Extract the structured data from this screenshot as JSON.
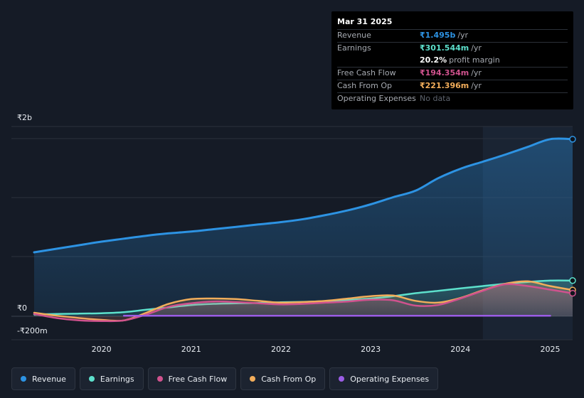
{
  "tooltip": {
    "date": "Mar 31 2025",
    "rows": [
      {
        "label": "Revenue",
        "value": "₹1.495b",
        "unit": "/yr",
        "color": "#2d93e3"
      },
      {
        "label": "Earnings",
        "value": "₹301.544m",
        "unit": "/yr",
        "color": "#5de0cc"
      },
      {
        "label": "",
        "value": "20.2%",
        "unit": "profit margin",
        "color": "#ffffff"
      },
      {
        "label": "Free Cash Flow",
        "value": "₹194.354m",
        "unit": "/yr",
        "color": "#d0528e"
      },
      {
        "label": "Cash From Op",
        "value": "₹221.396m",
        "unit": "/yr",
        "color": "#f2ad5b"
      },
      {
        "label": "Operating Expenses",
        "value": "No data",
        "unit": "",
        "color": "#5d636d"
      }
    ]
  },
  "axis": {
    "y_top_label": "₹2b",
    "y_zero_label": "₹0",
    "y_bottom_label": "-₹200m"
  },
  "legend": [
    {
      "label": "Revenue",
      "color": "#2d93e3"
    },
    {
      "label": "Earnings",
      "color": "#5de0cc"
    },
    {
      "label": "Free Cash Flow",
      "color": "#d0528e"
    },
    {
      "label": "Cash From Op",
      "color": "#f2ad5b"
    },
    {
      "label": "Operating Expenses",
      "color": "#9b5de5"
    }
  ],
  "chart_data": {
    "type": "area",
    "title": "",
    "xlabel": "",
    "ylabel": "",
    "units": "INR millions",
    "xlim": [
      2019.25,
      2025.25
    ],
    "ylim": [
      -200,
      2000
    ],
    "x_ticks": [
      2020,
      2021,
      2022,
      2023,
      2024,
      2025
    ],
    "x_tick_labels": [
      "2020",
      "2021",
      "2022",
      "2023",
      "2024",
      "2025"
    ],
    "forecast_start": 2024.25,
    "series": [
      {
        "name": "Revenue",
        "color": "#2d93e3",
        "fill": true,
        "x": [
          2019.25,
          2019.5,
          2019.75,
          2020.0,
          2020.25,
          2020.5,
          2020.75,
          2021.0,
          2021.25,
          2021.5,
          2021.75,
          2022.0,
          2022.25,
          2022.5,
          2022.75,
          2023.0,
          2023.25,
          2023.5,
          2023.75,
          2024.0,
          2024.25,
          2024.5,
          2024.75,
          2025.0,
          2025.25
        ],
        "values": [
          540,
          570,
          600,
          630,
          655,
          680,
          700,
          715,
          735,
          755,
          775,
          795,
          820,
          855,
          895,
          945,
          1005,
          1060,
          1165,
          1245,
          1305,
          1365,
          1430,
          1495,
          1495
        ]
      },
      {
        "name": "Earnings",
        "color": "#5de0cc",
        "fill": true,
        "x": [
          2019.25,
          2019.5,
          2019.75,
          2020.0,
          2020.25,
          2020.5,
          2020.75,
          2021.0,
          2021.25,
          2021.5,
          2021.75,
          2022.0,
          2022.25,
          2022.5,
          2022.75,
          2023.0,
          2023.25,
          2023.5,
          2023.75,
          2024.0,
          2024.25,
          2024.5,
          2024.75,
          2025.0,
          2025.25
        ],
        "values": [
          15,
          20,
          22,
          26,
          35,
          55,
          75,
          95,
          105,
          110,
          112,
          118,
          122,
          128,
          138,
          150,
          170,
          195,
          215,
          235,
          255,
          275,
          290,
          301.5,
          301.5
        ]
      },
      {
        "name": "Free Cash Flow",
        "color": "#d0528e",
        "fill": true,
        "x": [
          2019.25,
          2019.5,
          2019.75,
          2020.0,
          2020.25,
          2020.5,
          2020.75,
          2021.0,
          2021.25,
          2021.5,
          2021.75,
          2022.0,
          2022.25,
          2022.5,
          2022.75,
          2023.0,
          2023.25,
          2023.5,
          2023.75,
          2024.0,
          2024.25,
          2024.5,
          2024.75,
          2025.0,
          2025.25
        ],
        "values": [
          20,
          -15,
          -35,
          -40,
          -35,
          15,
          80,
          110,
          125,
          120,
          110,
          100,
          105,
          115,
          125,
          140,
          135,
          90,
          95,
          150,
          215,
          270,
          255,
          225,
          194.4
        ]
      },
      {
        "name": "Cash From Op",
        "color": "#f2ad5b",
        "fill": true,
        "x": [
          2019.25,
          2019.5,
          2019.75,
          2020.0,
          2020.25,
          2020.5,
          2020.75,
          2021.0,
          2021.25,
          2021.5,
          2021.75,
          2022.0,
          2022.25,
          2022.5,
          2022.75,
          2023.0,
          2023.25,
          2023.5,
          2023.75,
          2024.0,
          2024.25,
          2024.5,
          2024.75,
          2025.0,
          2025.25
        ],
        "values": [
          30,
          5,
          -15,
          -30,
          -35,
          30,
          105,
          145,
          150,
          145,
          130,
          115,
          120,
          130,
          150,
          170,
          175,
          130,
          115,
          155,
          220,
          275,
          295,
          255,
          221.4
        ]
      },
      {
        "name": "Operating Expenses",
        "color": "#9b5de5",
        "fill": false,
        "x": [
          2020.25,
          2025.0
        ],
        "values": [
          5,
          5
        ]
      }
    ]
  }
}
